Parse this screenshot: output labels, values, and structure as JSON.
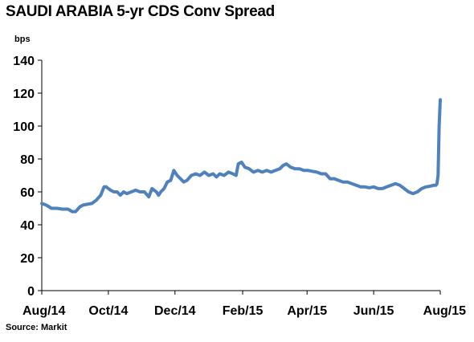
{
  "chart_data": {
    "type": "line",
    "title": "SAUDI ARABIA 5-yr CDS Conv Spread",
    "ylabel": "bps",
    "xlabel": "",
    "source": "Source: Markit",
    "ylim": [
      0,
      140
    ],
    "yticks": [
      0,
      20,
      40,
      60,
      80,
      100,
      120,
      140
    ],
    "xlim": [
      "2014-08-01",
      "2015-08-01"
    ],
    "xtick_labels": [
      {
        "date": "2014-08-01",
        "label": "Aug/14"
      },
      {
        "date": "2014-10-01",
        "label": "Oct/14"
      },
      {
        "date": "2014-12-01",
        "label": "Dec/14"
      },
      {
        "date": "2015-02-01",
        "label": "Feb/15"
      },
      {
        "date": "2015-04-01",
        "label": "Apr/15"
      },
      {
        "date": "2015-06-01",
        "label": "Jun/15"
      },
      {
        "date": "2015-08-01",
        "label": "Aug/15"
      }
    ],
    "grid": false,
    "legend": "none",
    "line_color": "#4F81BD",
    "series": [
      {
        "name": "",
        "x": [
          "2014-08-01",
          "2014-08-05",
          "2014-08-10",
          "2014-08-15",
          "2014-08-20",
          "2014-08-25",
          "2014-08-29",
          "2014-09-01",
          "2014-09-05",
          "2014-09-08",
          "2014-09-12",
          "2014-09-16",
          "2014-09-20",
          "2014-09-24",
          "2014-09-27",
          "2014-09-29",
          "2014-10-01",
          "2014-10-03",
          "2014-10-06",
          "2014-10-09",
          "2014-10-12",
          "2014-10-15",
          "2014-10-18",
          "2014-10-22",
          "2014-10-26",
          "2014-10-30",
          "2014-11-03",
          "2014-11-07",
          "2014-11-10",
          "2014-11-14",
          "2014-11-16",
          "2014-11-18",
          "2014-11-21",
          "2014-11-24",
          "2014-11-27",
          "2014-11-30",
          "2014-12-03",
          "2014-12-06",
          "2014-12-09",
          "2014-12-12",
          "2014-12-16",
          "2014-12-20",
          "2014-12-24",
          "2014-12-28",
          "2015-01-01",
          "2015-01-05",
          "2015-01-08",
          "2015-01-11",
          "2015-01-15",
          "2015-01-19",
          "2015-01-23",
          "2015-01-26",
          "2015-01-28",
          "2015-01-31",
          "2015-02-03",
          "2015-02-07",
          "2015-02-11",
          "2015-02-15",
          "2015-02-19",
          "2015-02-23",
          "2015-02-27",
          "2015-03-03",
          "2015-03-07",
          "2015-03-10",
          "2015-03-13",
          "2015-03-17",
          "2015-03-21",
          "2015-03-25",
          "2015-03-29",
          "2015-04-02",
          "2015-04-06",
          "2015-04-10",
          "2015-04-14",
          "2015-04-18",
          "2015-04-22",
          "2015-04-26",
          "2015-04-30",
          "2015-05-04",
          "2015-05-08",
          "2015-05-12",
          "2015-05-16",
          "2015-05-20",
          "2015-05-24",
          "2015-05-28",
          "2015-06-01",
          "2015-06-05",
          "2015-06-09",
          "2015-06-13",
          "2015-06-17",
          "2015-06-21",
          "2015-06-25",
          "2015-06-29",
          "2015-07-03",
          "2015-07-07",
          "2015-07-11",
          "2015-07-15",
          "2015-07-19",
          "2015-07-23",
          "2015-07-26",
          "2015-07-28",
          "2015-07-29",
          "2015-07-30",
          "2015-07-31",
          "2015-08-01"
        ],
        "values": [
          53,
          52,
          50,
          50,
          49.5,
          49.5,
          48,
          48,
          51,
          52,
          52.5,
          53,
          55,
          58,
          63,
          63,
          62,
          61,
          60,
          60,
          58,
          60,
          59,
          60,
          61,
          60,
          60,
          57,
          62,
          60,
          58,
          60,
          62,
          66,
          67,
          73,
          70,
          68,
          66,
          67,
          70,
          71,
          70,
          72,
          70,
          71,
          69,
          71,
          70,
          72,
          71,
          70,
          77,
          78,
          75,
          74,
          72,
          73,
          72,
          73,
          72,
          73,
          74,
          76,
          77,
          75,
          74,
          74,
          73,
          73,
          72.5,
          72,
          71,
          71,
          68,
          68,
          67,
          66,
          66,
          65,
          64,
          63,
          63,
          62.5,
          63,
          62,
          62,
          63,
          64,
          65,
          64,
          62,
          60,
          59,
          60,
          62,
          63,
          63.5,
          64,
          64,
          65,
          70,
          100,
          116
        ]
      }
    ]
  }
}
